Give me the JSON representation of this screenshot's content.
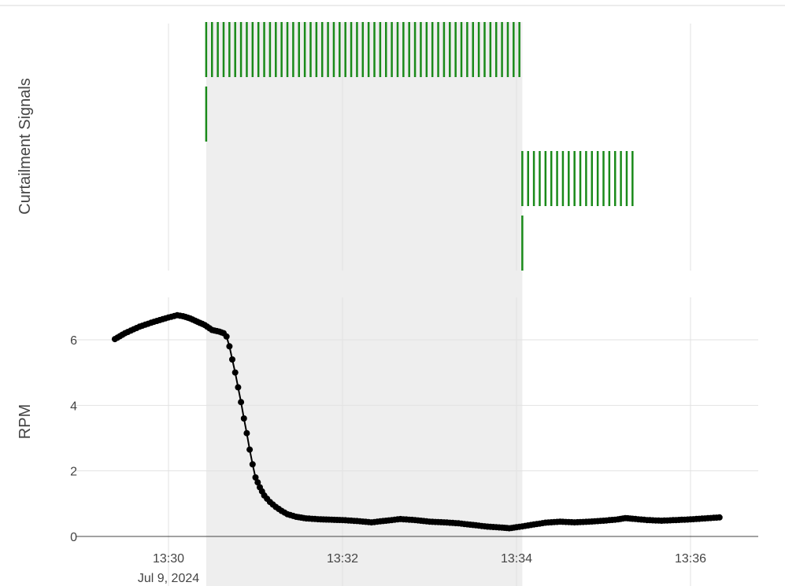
{
  "chart_data": [
    {
      "type": "event",
      "ylabel": "Curtailment Signals",
      "rows": [
        {
          "color": "#1a8a1a",
          "x_start": "13:30:26",
          "x_end": "13:34:04",
          "interval_sec": 4
        },
        {
          "color": "#1a8a1a",
          "x": [
            "13:30:26"
          ]
        },
        {
          "color": "#1a8a1a",
          "x_start": "13:34:04",
          "x_end": "13:35:23",
          "interval_sec": 4
        },
        {
          "color": "#1a8a1a",
          "x": [
            "13:34:04"
          ]
        }
      ],
      "grid": true
    },
    {
      "type": "scatter",
      "mode": "lines+markers",
      "color": "#000000",
      "xlabel": "",
      "ylabel": "RPM",
      "ylim": [
        0,
        7.2
      ],
      "y_ticks": [
        0,
        2,
        4,
        6
      ],
      "x_ticks": [
        "13:30",
        "13:32",
        "13:34",
        "13:36"
      ],
      "x_tick_sublabel": "Jul 9, 2024",
      "grid": true,
      "points": [
        [
          "13:29:23",
          6.02
        ],
        [
          "13:29:30",
          6.2
        ],
        [
          "13:29:40",
          6.4
        ],
        [
          "13:29:50",
          6.55
        ],
        [
          "13:30:00",
          6.68
        ],
        [
          "13:30:06",
          6.75
        ],
        [
          "13:30:10",
          6.72
        ],
        [
          "13:30:15",
          6.65
        ],
        [
          "13:30:20",
          6.55
        ],
        [
          "13:30:25",
          6.45
        ],
        [
          "13:30:30",
          6.3
        ],
        [
          "13:30:35",
          6.25
        ],
        [
          "13:30:38",
          6.2
        ],
        [
          "13:30:40",
          6.1
        ],
        [
          "13:30:42",
          5.8
        ],
        [
          "13:30:44",
          5.4
        ],
        [
          "13:30:46",
          5.0
        ],
        [
          "13:30:48",
          4.55
        ],
        [
          "13:30:50",
          4.1
        ],
        [
          "13:30:52",
          3.6
        ],
        [
          "13:30:54",
          3.15
        ],
        [
          "13:30:56",
          2.65
        ],
        [
          "13:30:58",
          2.2
        ],
        [
          "13:31:00",
          1.8
        ],
        [
          "13:31:03",
          1.5
        ],
        [
          "13:31:06",
          1.25
        ],
        [
          "13:31:10",
          1.05
        ],
        [
          "13:31:14",
          0.9
        ],
        [
          "13:31:18",
          0.78
        ],
        [
          "13:31:22",
          0.68
        ],
        [
          "13:31:28",
          0.6
        ],
        [
          "13:31:35",
          0.55
        ],
        [
          "13:31:45",
          0.52
        ],
        [
          "13:32:00",
          0.5
        ],
        [
          "13:32:10",
          0.47
        ],
        [
          "13:32:20",
          0.43
        ],
        [
          "13:32:30",
          0.48
        ],
        [
          "13:32:40",
          0.53
        ],
        [
          "13:32:50",
          0.5
        ],
        [
          "13:33:00",
          0.45
        ],
        [
          "13:33:10",
          0.43
        ],
        [
          "13:33:20",
          0.4
        ],
        [
          "13:33:30",
          0.35
        ],
        [
          "13:33:40",
          0.3
        ],
        [
          "13:33:50",
          0.27
        ],
        [
          "13:33:55",
          0.25
        ],
        [
          "13:34:00",
          0.28
        ],
        [
          "13:34:10",
          0.35
        ],
        [
          "13:34:20",
          0.42
        ],
        [
          "13:34:30",
          0.45
        ],
        [
          "13:34:40",
          0.43
        ],
        [
          "13:34:50",
          0.45
        ],
        [
          "13:35:00",
          0.48
        ],
        [
          "13:35:10",
          0.52
        ],
        [
          "13:35:15",
          0.56
        ],
        [
          "13:35:20",
          0.54
        ],
        [
          "13:35:30",
          0.5
        ],
        [
          "13:35:40",
          0.48
        ],
        [
          "13:35:50",
          0.5
        ],
        [
          "13:36:00",
          0.52
        ],
        [
          "13:36:10",
          0.55
        ],
        [
          "13:36:20",
          0.58
        ]
      ]
    }
  ],
  "shaded_region": {
    "x_start": "13:30:26",
    "x_end": "13:34:04",
    "color": "#eeeeee"
  }
}
